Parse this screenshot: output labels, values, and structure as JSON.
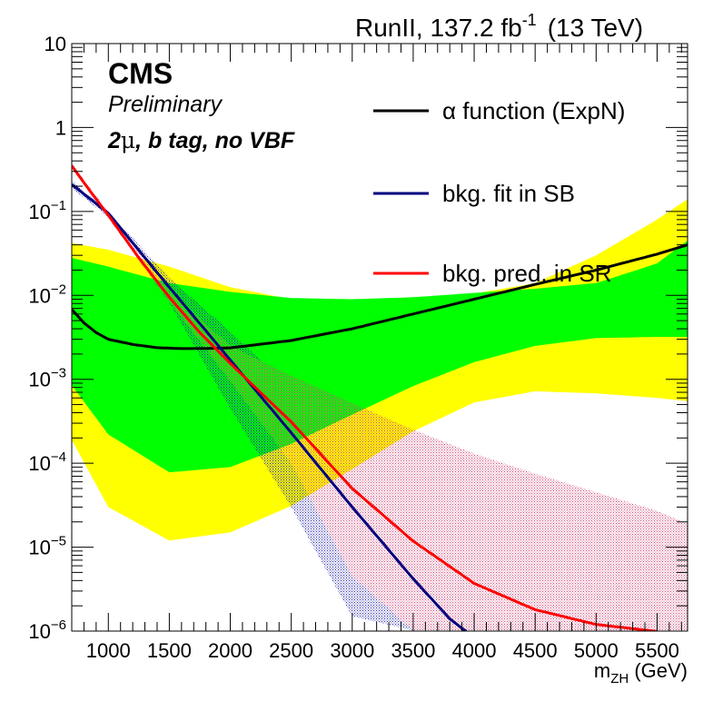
{
  "header": {
    "run_label": "RunII, 137.2 fb",
    "run_exp": "-1",
    "energy": "(13 TeV)"
  },
  "labels": {
    "experiment": "CMS",
    "status": "Preliminary",
    "category_prefix": "2",
    "category_mu": "μ",
    "category_rest": ", b tag, no VBF"
  },
  "chart_data": {
    "type": "line",
    "title": "",
    "xlabel_main": "m",
    "xlabel_sub": "ZH",
    "xlabel_unit": " (GeV)",
    "ylabel": "",
    "xlim": [
      700,
      5750
    ],
    "ylim": [
      1e-06,
      10
    ],
    "yscale": "log",
    "grid": false,
    "legend_position": "top-right",
    "x_ticks": [
      1000,
      1500,
      2000,
      2500,
      3000,
      3500,
      4000,
      4500,
      5000,
      5500
    ],
    "y_ticks": [
      {
        "value": 10,
        "base": "10",
        "exp": ""
      },
      {
        "value": 1,
        "base": "1",
        "exp": ""
      },
      {
        "value": 0.1,
        "base": "10",
        "exp": "−1"
      },
      {
        "value": 0.01,
        "base": "10",
        "exp": "−2"
      },
      {
        "value": 0.001,
        "base": "10",
        "exp": "−3"
      },
      {
        "value": 0.0001,
        "base": "10",
        "exp": "−4"
      },
      {
        "value": 1e-05,
        "base": "10",
        "exp": "−5"
      },
      {
        "value": 1e-06,
        "base": "10",
        "exp": "−6"
      }
    ],
    "series": [
      {
        "name": "α function (ExpN)",
        "color": "#000000",
        "x": [
          700,
          800,
          900,
          1000,
          1200,
          1400,
          1600,
          1800,
          2000,
          2500,
          3000,
          3500,
          4000,
          4500,
          5000,
          5500,
          5750
        ],
        "y": [
          0.0068,
          0.0047,
          0.0036,
          0.003,
          0.0026,
          0.00238,
          0.00232,
          0.00233,
          0.00237,
          0.0029,
          0.004,
          0.006,
          0.009,
          0.0135,
          0.02,
          0.031,
          0.04
        ]
      },
      {
        "name": "bkg. fit in SB",
        "color": "#00007f",
        "x": [
          700,
          1000,
          1500,
          2000,
          2500,
          3000,
          3500,
          3800,
          3950
        ],
        "y": [
          0.21,
          0.095,
          0.0125,
          0.0017,
          0.00023,
          3e-05,
          4.2e-06,
          1.4e-06,
          9.5e-07
        ]
      },
      {
        "name": "bkg. pred. in SR",
        "color": "#ff0000",
        "x": [
          700,
          850,
          1000,
          1250,
          1500,
          1750,
          2000,
          2500,
          3000,
          3500,
          4000,
          4500,
          5000,
          5500
        ],
        "y": [
          0.35,
          0.175,
          0.09,
          0.028,
          0.0095,
          0.0036,
          0.00155,
          0.00031,
          5e-05,
          1.18e-05,
          3.7e-06,
          1.8e-06,
          1.2e-06,
          9.9e-07
        ]
      }
    ],
    "bands": [
      {
        "name": "alpha 2 sigma",
        "color": "#ffff00",
        "x": [
          700,
          1000,
          1500,
          2000,
          2500,
          3000,
          3500,
          4000,
          4500,
          5000,
          5500,
          5750
        ],
        "upper": [
          0.042,
          0.035,
          0.022,
          0.0125,
          0.009,
          0.0085,
          0.0088,
          0.0105,
          0.014,
          0.03,
          0.08,
          0.14
        ],
        "lower": [
          0.00019,
          3e-05,
          1.2e-05,
          1.5e-05,
          3.1e-05,
          8.5e-05,
          0.00024,
          0.00053,
          0.00072,
          0.00068,
          0.0006,
          0.00055
        ]
      },
      {
        "name": "alpha 1 sigma",
        "color": "#00ff00",
        "x": [
          700,
          1000,
          1500,
          2000,
          2500,
          3000,
          3500,
          4000,
          4500,
          5000,
          5500,
          5750
        ],
        "upper": [
          0.028,
          0.022,
          0.014,
          0.011,
          0.0093,
          0.009,
          0.0095,
          0.0107,
          0.012,
          0.014,
          0.024,
          0.045
        ],
        "lower": [
          0.00085,
          0.00022,
          7.8e-05,
          9e-05,
          0.00017,
          0.00038,
          0.00083,
          0.0016,
          0.0025,
          0.0031,
          0.0032,
          0.0032
        ]
      },
      {
        "name": "bkg. fit in SB uncertainty",
        "color": "#2c2cb0",
        "x": [
          700,
          1000,
          1500,
          2000,
          2500,
          3000,
          3500,
          3900
        ],
        "upper": [
          0.23,
          0.1,
          0.016,
          0.0037,
          0.00075,
          6.5e-05,
          5.5e-06,
          1.2e-06
        ],
        "lower": [
          0.19,
          0.085,
          0.0082,
          0.00045,
          3e-05,
          1.5e-06,
          1.02e-06,
          1e-06
        ]
      },
      {
        "name": "bkg. pred. in SR uncertainty",
        "color": "#d5487a",
        "x": [
          700,
          1000,
          1500,
          2000,
          2500,
          3000,
          3500,
          4000,
          4500,
          5000,
          5500,
          5750
        ],
        "upper": [
          0.37,
          0.1,
          0.011,
          0.0025,
          0.0011,
          0.00052,
          0.00025,
          0.00013,
          7.5e-05,
          4.5e-05,
          2.7e-05,
          1.9e-05
        ],
        "lower": [
          0.33,
          0.082,
          0.0085,
          0.00095,
          0.0001,
          4.5e-06,
          1.02e-06,
          1e-06,
          1e-06,
          1e-06,
          1e-06,
          1e-06
        ]
      }
    ]
  }
}
